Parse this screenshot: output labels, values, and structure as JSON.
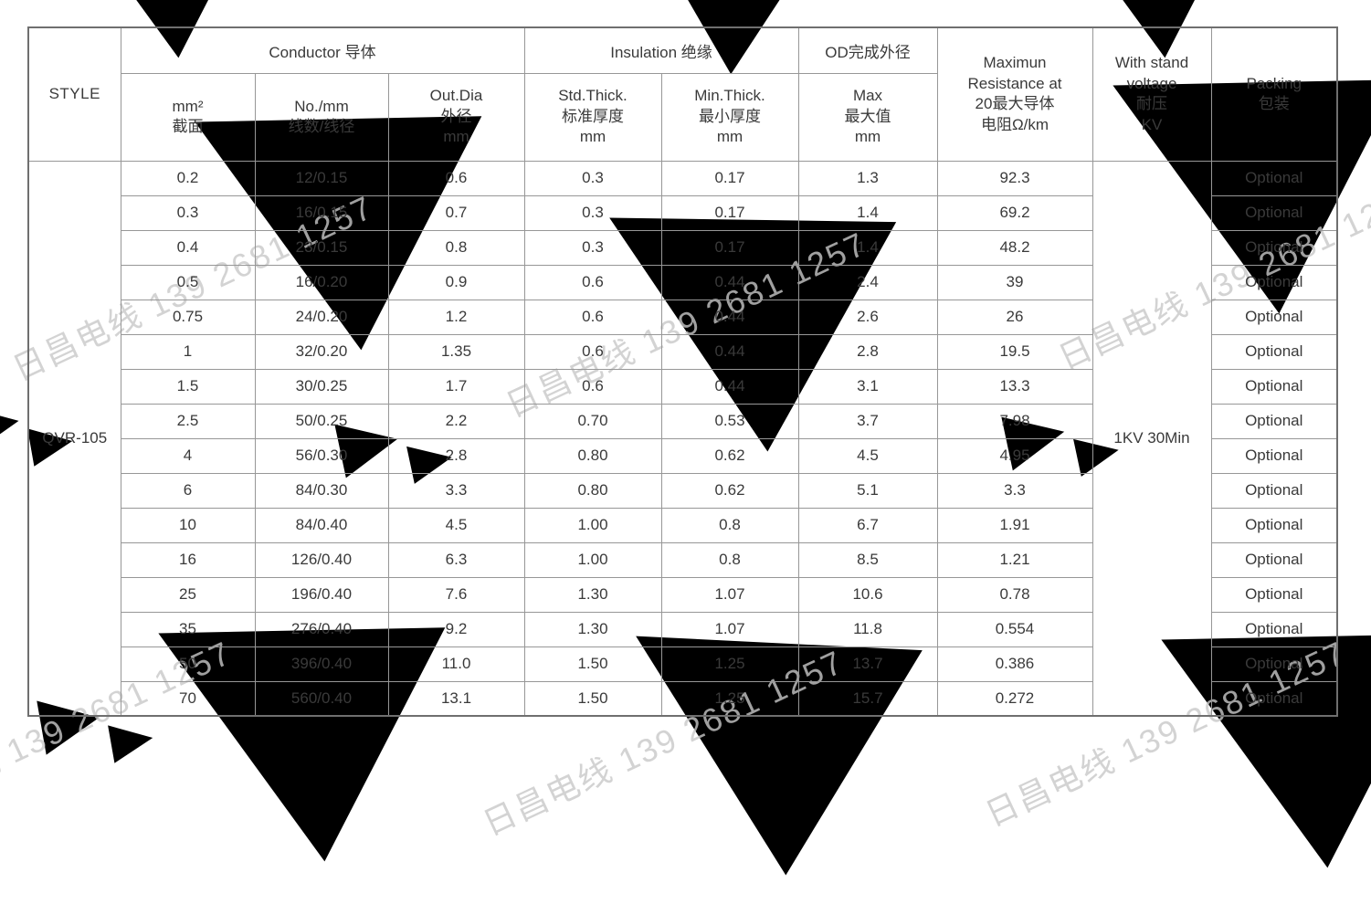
{
  "watermark": {
    "text": "日昌电线 139 2681 1257"
  },
  "colors": {
    "background": "#ffffff",
    "grid_line": "#979797",
    "outer_border": "#6f6f6f",
    "text": "#3a3a3a",
    "watermark_text": "#c9c9c9",
    "watermark_shape": "#e4e4e4"
  },
  "table": {
    "style_label": "STYLE",
    "groups": {
      "conductor": "Conductor 导体",
      "insulation": "Insulation 绝缘",
      "od": "OD完成外径"
    },
    "columns": {
      "mm2": "mm²\n截面",
      "no_mm": "No./mm\n线数/线径",
      "out_dia": "Out.Dia\n外径\nmm",
      "std_thick": "Std.Thick.\n标准厚度\nmm",
      "min_thick": "Min.Thick.\n最小厚度\nmm",
      "max": "Max\n最大值\nmm",
      "resistance": "Maximun\nResistance at\n20最大导体\n电阻Ω/km",
      "withstand": "With stand\nvoltage\n耐压\nKV",
      "packing": "Packing\n包装"
    },
    "style_value": "QVR-105",
    "withstand_value": "1KV 30Min",
    "rows": [
      [
        "0.2",
        "12/0.15",
        "0.6",
        "0.3",
        "0.17",
        "1.3",
        "92.3",
        "Optional"
      ],
      [
        "0.3",
        "16/0.15",
        "0.7",
        "0.3",
        "0.17",
        "1.4",
        "69.2",
        "Optional"
      ],
      [
        "0.4",
        "23/0.15",
        "0.8",
        "0.3",
        "0.17",
        "1.4",
        "48.2",
        "Optional"
      ],
      [
        "0.5",
        "16/0.20",
        "0.9",
        "0.6",
        "0.44",
        "2.4",
        "39",
        "Optional"
      ],
      [
        "0.75",
        "24/0.20",
        "1.2",
        "0.6",
        "0.44",
        "2.6",
        "26",
        "Optional"
      ],
      [
        "1",
        "32/0.20",
        "1.35",
        "0.6",
        "0.44",
        "2.8",
        "19.5",
        "Optional"
      ],
      [
        "1.5",
        "30/0.25",
        "1.7",
        "0.6",
        "0.44",
        "3.1",
        "13.3",
        "Optional"
      ],
      [
        "2.5",
        "50/0.25",
        "2.2",
        "0.70",
        "0.53",
        "3.7",
        "7.98",
        "Optional"
      ],
      [
        "4",
        "56/0.30",
        "2.8",
        "0.80",
        "0.62",
        "4.5",
        "4.95",
        "Optional"
      ],
      [
        "6",
        "84/0.30",
        "3.3",
        "0.80",
        "0.62",
        "5.1",
        "3.3",
        "Optional"
      ],
      [
        "10",
        "84/0.40",
        "4.5",
        "1.00",
        "0.8",
        "6.7",
        "1.91",
        "Optional"
      ],
      [
        "16",
        "126/0.40",
        "6.3",
        "1.00",
        "0.8",
        "8.5",
        "1.21",
        "Optional"
      ],
      [
        "25",
        "196/0.40",
        "7.6",
        "1.30",
        "1.07",
        "10.6",
        "0.78",
        "Optional"
      ],
      [
        "35",
        "276/0.40",
        "9.2",
        "1.30",
        "1.07",
        "11.8",
        "0.554",
        "Optional"
      ],
      [
        "50",
        "396/0.40",
        "11.0",
        "1.50",
        "1.25",
        "13.7",
        "0.386",
        "Optional"
      ],
      [
        "70",
        "560/0.40",
        "13.1",
        "1.50",
        "1.25",
        "15.7",
        "0.272",
        "Optional"
      ]
    ]
  }
}
